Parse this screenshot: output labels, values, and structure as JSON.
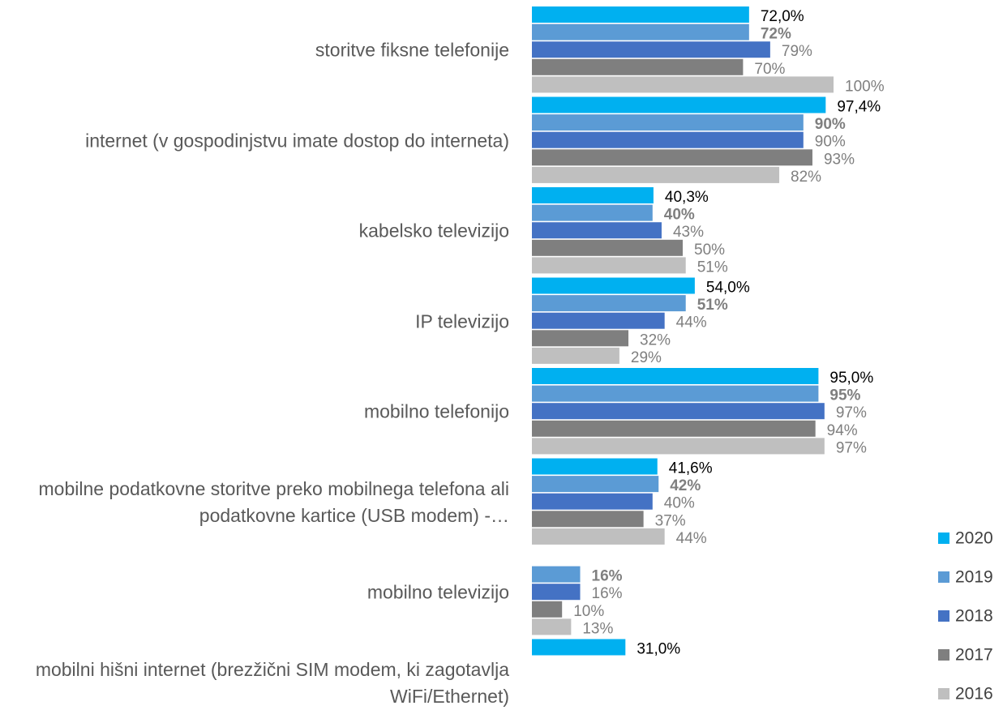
{
  "chart_data": {
    "type": "bar",
    "orientation": "horizontal",
    "categories": [
      "storitve fiksne telefonije",
      "internet (v gospodinjstvu imate dostop do interneta)",
      "kabelsko televizijo",
      "IP televizijo",
      "mobilno telefonijo",
      "mobilne podatkovne storitve preko mobilnega telefona ali podatkovne kartice (USB modem) -…",
      "mobilno televizijo",
      "mobilni hišni internet (brezžični SIM modem, ki zagotavlja WiFi/Ethernet)"
    ],
    "xlim": [
      0,
      100
    ],
    "legend": "right",
    "series": [
      {
        "name": "2020",
        "color": "#00b0f0",
        "label_color": "#000000",
        "label_bold": false,
        "values": [
          72.0,
          97.4,
          40.3,
          54.0,
          95.0,
          41.6,
          null,
          31.0
        ],
        "value_labels": [
          "72,0%",
          "97,4%",
          "40,3%",
          "54,0%",
          "95,0%",
          "41,6%",
          null,
          "31,0%"
        ]
      },
      {
        "name": "2019",
        "color": "#5b9bd5",
        "label_color": "#7f7f7f",
        "label_bold": true,
        "values": [
          72,
          90,
          40,
          51,
          95,
          42,
          16,
          null
        ],
        "value_labels": [
          "72%",
          "90%",
          "40%",
          "51%",
          "95%",
          "42%",
          "16%",
          null
        ]
      },
      {
        "name": "2018",
        "color": "#4472c4",
        "label_color": "#7f7f7f",
        "label_bold": false,
        "values": [
          79,
          90,
          43,
          44,
          97,
          40,
          16,
          null
        ],
        "value_labels": [
          "79%",
          "90%",
          "43%",
          "44%",
          "97%",
          "40%",
          "16%",
          null
        ]
      },
      {
        "name": "2017",
        "color": "#7f7f7f",
        "label_color": "#7f7f7f",
        "label_bold": false,
        "values": [
          70,
          93,
          50,
          32,
          94,
          37,
          10,
          null
        ],
        "value_labels": [
          "70%",
          "93%",
          "50%",
          "32%",
          "94%",
          "37%",
          "10%",
          null
        ]
      },
      {
        "name": "2016",
        "color": "#bfbfbf",
        "label_color": "#7f7f7f",
        "label_bold": false,
        "values": [
          100,
          82,
          51,
          29,
          97,
          44,
          13,
          null
        ],
        "value_labels": [
          "100%",
          "82%",
          "51%",
          "29%",
          "97%",
          "44%",
          "13%",
          null
        ]
      }
    ]
  }
}
